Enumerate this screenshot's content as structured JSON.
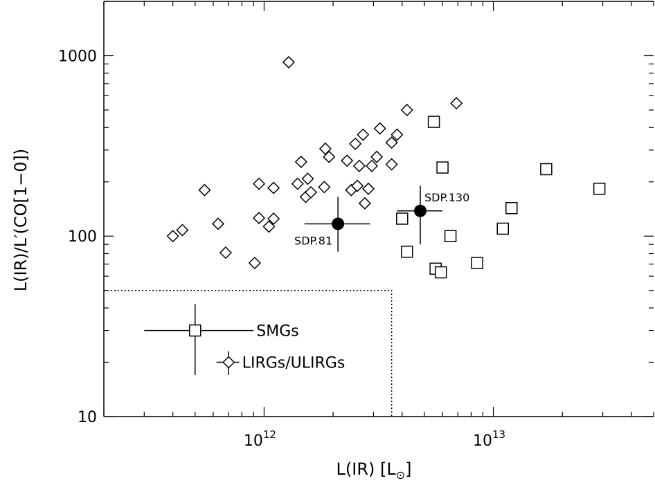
{
  "chart_data": {
    "type": "scatter",
    "title": "",
    "xlabel": "L(IR)  [L",
    "xlabel_sub": "⊙",
    "xlabel_close": "]",
    "ylabel": "L(IR)/L′(CO[1−0])",
    "xscale": "log",
    "yscale": "log",
    "xlim": [
      200000000000.0,
      50000000000000.0
    ],
    "ylim": [
      10,
      2000
    ],
    "x_ticks": [
      {
        "value": 1000000000000.0,
        "base": "10",
        "exp": "12"
      },
      {
        "value": 10000000000000.0,
        "base": "10",
        "exp": "13"
      }
    ],
    "y_ticks": [
      {
        "value": 10,
        "label": "10"
      },
      {
        "value": 100,
        "label": "100"
      },
      {
        "value": 1000,
        "label": "1000"
      }
    ],
    "grid": false,
    "legend": {
      "placement": "bottom-left",
      "entries": [
        {
          "series": "smg",
          "label": "SMGs",
          "marker": "square"
        },
        {
          "series": "lirg",
          "label": "LIRGs/ULIRGs",
          "marker": "diamond"
        }
      ]
    },
    "legend_errorbars": {
      "smg": {
        "x": 500000000000.0,
        "y": 30,
        "xlo": 300000000000.0,
        "xhi": 900000000000.0,
        "ylo": 17,
        "yhi": 42
      },
      "lirg": {
        "x": 700000000000.0,
        "y": 20,
        "xlo": 620000000000.0,
        "xhi": 780000000000.0,
        "ylo": 17,
        "yhi": 23
      }
    },
    "region_boundary": {
      "x_max": 3600000000000.0,
      "y_max": 50
    },
    "series": [
      {
        "id": "lirg",
        "marker": "diamond",
        "points": [
          [
            400000000000.0,
            100
          ],
          [
            440000000000.0,
            108
          ],
          [
            550000000000.0,
            180
          ],
          [
            630000000000.0,
            117
          ],
          [
            680000000000.0,
            81
          ],
          [
            910000000000.0,
            71
          ],
          [
            950000000000.0,
            195
          ],
          [
            950000000000.0,
            126
          ],
          [
            1050000000000.0,
            113
          ],
          [
            1100000000000.0,
            185
          ],
          [
            1100000000000.0,
            125
          ],
          [
            1280000000000.0,
            920
          ],
          [
            1400000000000.0,
            195
          ],
          [
            1450000000000.0,
            258
          ],
          [
            1520000000000.0,
            165
          ],
          [
            1550000000000.0,
            208
          ],
          [
            1600000000000.0,
            175
          ],
          [
            1830000000000.0,
            187
          ],
          [
            1850000000000.0,
            305
          ],
          [
            1920000000000.0,
            275
          ],
          [
            2300000000000.0,
            262
          ],
          [
            2400000000000.0,
            180
          ],
          [
            2500000000000.0,
            325
          ],
          [
            2550000000000.0,
            190
          ],
          [
            2600000000000.0,
            245
          ],
          [
            2700000000000.0,
            365
          ],
          [
            2750000000000.0,
            152
          ],
          [
            2850000000000.0,
            183
          ],
          [
            2950000000000.0,
            245
          ],
          [
            3100000000000.0,
            275
          ],
          [
            3200000000000.0,
            395
          ],
          [
            3600000000000.0,
            250
          ],
          [
            3600000000000.0,
            330
          ],
          [
            3800000000000.0,
            365
          ],
          [
            4200000000000.0,
            500
          ],
          [
            6900000000000.0,
            545
          ]
        ]
      },
      {
        "id": "smg",
        "marker": "square",
        "points": [
          [
            4000000000000.0,
            125
          ],
          [
            4200000000000.0,
            82
          ],
          [
            5500000000000.0,
            430
          ],
          [
            5600000000000.0,
            66
          ],
          [
            5900000000000.0,
            63
          ],
          [
            6000000000000.0,
            240
          ],
          [
            6500000000000.0,
            100
          ],
          [
            8500000000000.0,
            71
          ],
          [
            11000000000000.0,
            110
          ],
          [
            12000000000000.0,
            143
          ],
          [
            17000000000000.0,
            235
          ],
          [
            29000000000000.0,
            183
          ]
        ]
      },
      {
        "id": "sdp",
        "marker": "filled-circle",
        "points": [
          {
            "name": "SDP.81",
            "x": 2100000000000.0,
            "y": 117,
            "xlo": 1500000000000.0,
            "xhi": 2900000000000.0,
            "ylo": 82,
            "yhi": 165
          },
          {
            "name": "SDP.130",
            "x": 4800000000000.0,
            "y": 138,
            "xlo": 3800000000000.0,
            "xhi": 6000000000000.0,
            "ylo": 90,
            "yhi": 190
          }
        ]
      }
    ]
  }
}
